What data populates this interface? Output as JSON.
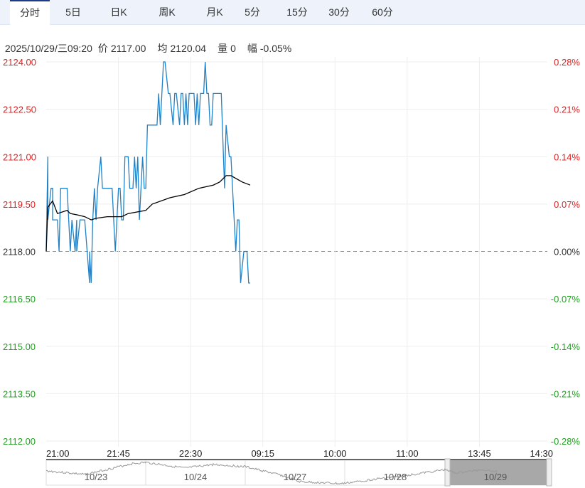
{
  "tabs": [
    {
      "label": "分时",
      "active": true
    },
    {
      "label": "5日"
    },
    {
      "label": "日K"
    },
    {
      "label": "周K"
    },
    {
      "label": "月K"
    },
    {
      "label": "5分"
    },
    {
      "label": "15分"
    },
    {
      "label": "30分"
    },
    {
      "label": "60分"
    }
  ],
  "info": {
    "datetime": "2025/10/29/三09:20",
    "price_label": "价",
    "price": "2117.00",
    "avg_label": "均",
    "avg": "2120.04",
    "vol_label": "量",
    "vol": "0",
    "chg_label": "幅",
    "chg": "-0.05%"
  },
  "colors": {
    "up": "#e02020",
    "down": "#20a020",
    "price_line": "#1f82c8",
    "avg_line": "#000000",
    "grid": "#eeeeee"
  },
  "chart_data": {
    "type": "line",
    "base_price": 2118.0,
    "ylim": [
      2112,
      2124
    ],
    "y_ticks": [
      "2124.00",
      "2122.50",
      "2121.00",
      "2119.50",
      "2118.00",
      "2116.50",
      "2115.00",
      "2113.50",
      "2112.00"
    ],
    "y_right_ticks": [
      "0.28%",
      "0.21%",
      "0.14%",
      "0.07%",
      "0.00%",
      "-0.07%",
      "-0.14%",
      "-0.21%",
      "-0.28%"
    ],
    "x_ticks": [
      "21:00",
      "21:45",
      "22:30",
      "09:15",
      "10:00",
      "11:00",
      "13:45",
      "14:30"
    ],
    "x_unit": "trading minutes since 21:00",
    "x_range": [
      0,
      315
    ],
    "series": [
      {
        "key": "price",
        "points": [
          [
            0,
            2118
          ],
          [
            1,
            2121
          ],
          [
            1,
            2119
          ],
          [
            3,
            2120
          ],
          [
            4,
            2120
          ],
          [
            4,
            2119
          ],
          [
            7,
            2119
          ],
          [
            8,
            2118
          ],
          [
            8,
            2118
          ],
          [
            9,
            2120
          ],
          [
            13,
            2120
          ],
          [
            15,
            2118
          ],
          [
            15,
            2118
          ],
          [
            16,
            2119
          ],
          [
            18,
            2118
          ],
          [
            19,
            2119
          ],
          [
            19,
            2118
          ],
          [
            21,
            2119
          ],
          [
            24,
            2119
          ],
          [
            27,
            2117
          ],
          [
            27,
            2118
          ],
          [
            28,
            2117
          ],
          [
            29,
            2119
          ],
          [
            30,
            2120
          ],
          [
            31,
            2119
          ],
          [
            32,
            2120
          ],
          [
            34,
            2121
          ],
          [
            35,
            2120
          ],
          [
            41,
            2120
          ],
          [
            43,
            2118
          ],
          [
            45,
            2120
          ],
          [
            46,
            2120
          ],
          [
            47,
            2119
          ],
          [
            48,
            2119
          ],
          [
            49,
            2121
          ],
          [
            51,
            2121
          ],
          [
            52,
            2120
          ],
          [
            54,
            2120
          ],
          [
            55,
            2121
          ],
          [
            56,
            2120
          ],
          [
            57,
            2121
          ],
          [
            58,
            2119
          ],
          [
            60,
            2121
          ],
          [
            61,
            2120
          ],
          [
            62,
            2120
          ],
          [
            63,
            2122
          ],
          [
            69,
            2122
          ],
          [
            70,
            2123
          ],
          [
            71,
            2122
          ],
          [
            73,
            2124
          ],
          [
            74,
            2124
          ],
          [
            76,
            2123
          ],
          [
            77,
            2123
          ],
          [
            79,
            2122
          ],
          [
            80,
            2123
          ],
          [
            81,
            2123
          ],
          [
            83,
            2122
          ],
          [
            84,
            2123
          ],
          [
            85,
            2123
          ],
          [
            86,
            2122
          ],
          [
            87,
            2123
          ],
          [
            88,
            2122
          ],
          [
            89,
            2123
          ],
          [
            92,
            2123
          ],
          [
            93,
            2122
          ],
          [
            94,
            2123
          ],
          [
            95,
            2122
          ],
          [
            96,
            2123
          ],
          [
            98,
            2123
          ],
          [
            99,
            2124
          ],
          [
            100,
            2123
          ],
          [
            101,
            2123
          ],
          [
            102,
            2122
          ],
          [
            103,
            2122
          ],
          [
            104,
            2123
          ],
          [
            109,
            2123
          ],
          [
            111,
            2120
          ],
          [
            112,
            2122
          ],
          [
            114,
            2121
          ],
          [
            115,
            2121
          ],
          [
            118,
            2118
          ],
          [
            119,
            2119
          ],
          [
            120,
            2119
          ],
          [
            121,
            2117
          ],
          [
            123,
            2118
          ],
          [
            125,
            2118
          ],
          [
            126,
            2117
          ],
          [
            127,
            2117
          ]
        ]
      },
      {
        "key": "avg",
        "points": [
          [
            0,
            2118
          ],
          [
            1,
            2119.4
          ],
          [
            4,
            2119.6
          ],
          [
            7,
            2119.2
          ],
          [
            13,
            2119.3
          ],
          [
            15,
            2119.2
          ],
          [
            20,
            2119.15
          ],
          [
            24,
            2119.1
          ],
          [
            28,
            2119.0
          ],
          [
            31,
            2119.05
          ],
          [
            38,
            2119.1
          ],
          [
            47,
            2119.1
          ],
          [
            51,
            2119.2
          ],
          [
            62,
            2119.3
          ],
          [
            66,
            2119.5
          ],
          [
            77,
            2119.7
          ],
          [
            86,
            2119.8
          ],
          [
            95,
            2120.0
          ],
          [
            104,
            2120.1
          ],
          [
            108,
            2120.2
          ],
          [
            112,
            2120.4
          ],
          [
            115,
            2120.4
          ],
          [
            122,
            2120.2
          ],
          [
            127,
            2120.1
          ]
        ]
      }
    ]
  },
  "navigator": {
    "dates": [
      "10/23",
      "10/24",
      "10/27",
      "10/28",
      "10/29"
    ]
  }
}
